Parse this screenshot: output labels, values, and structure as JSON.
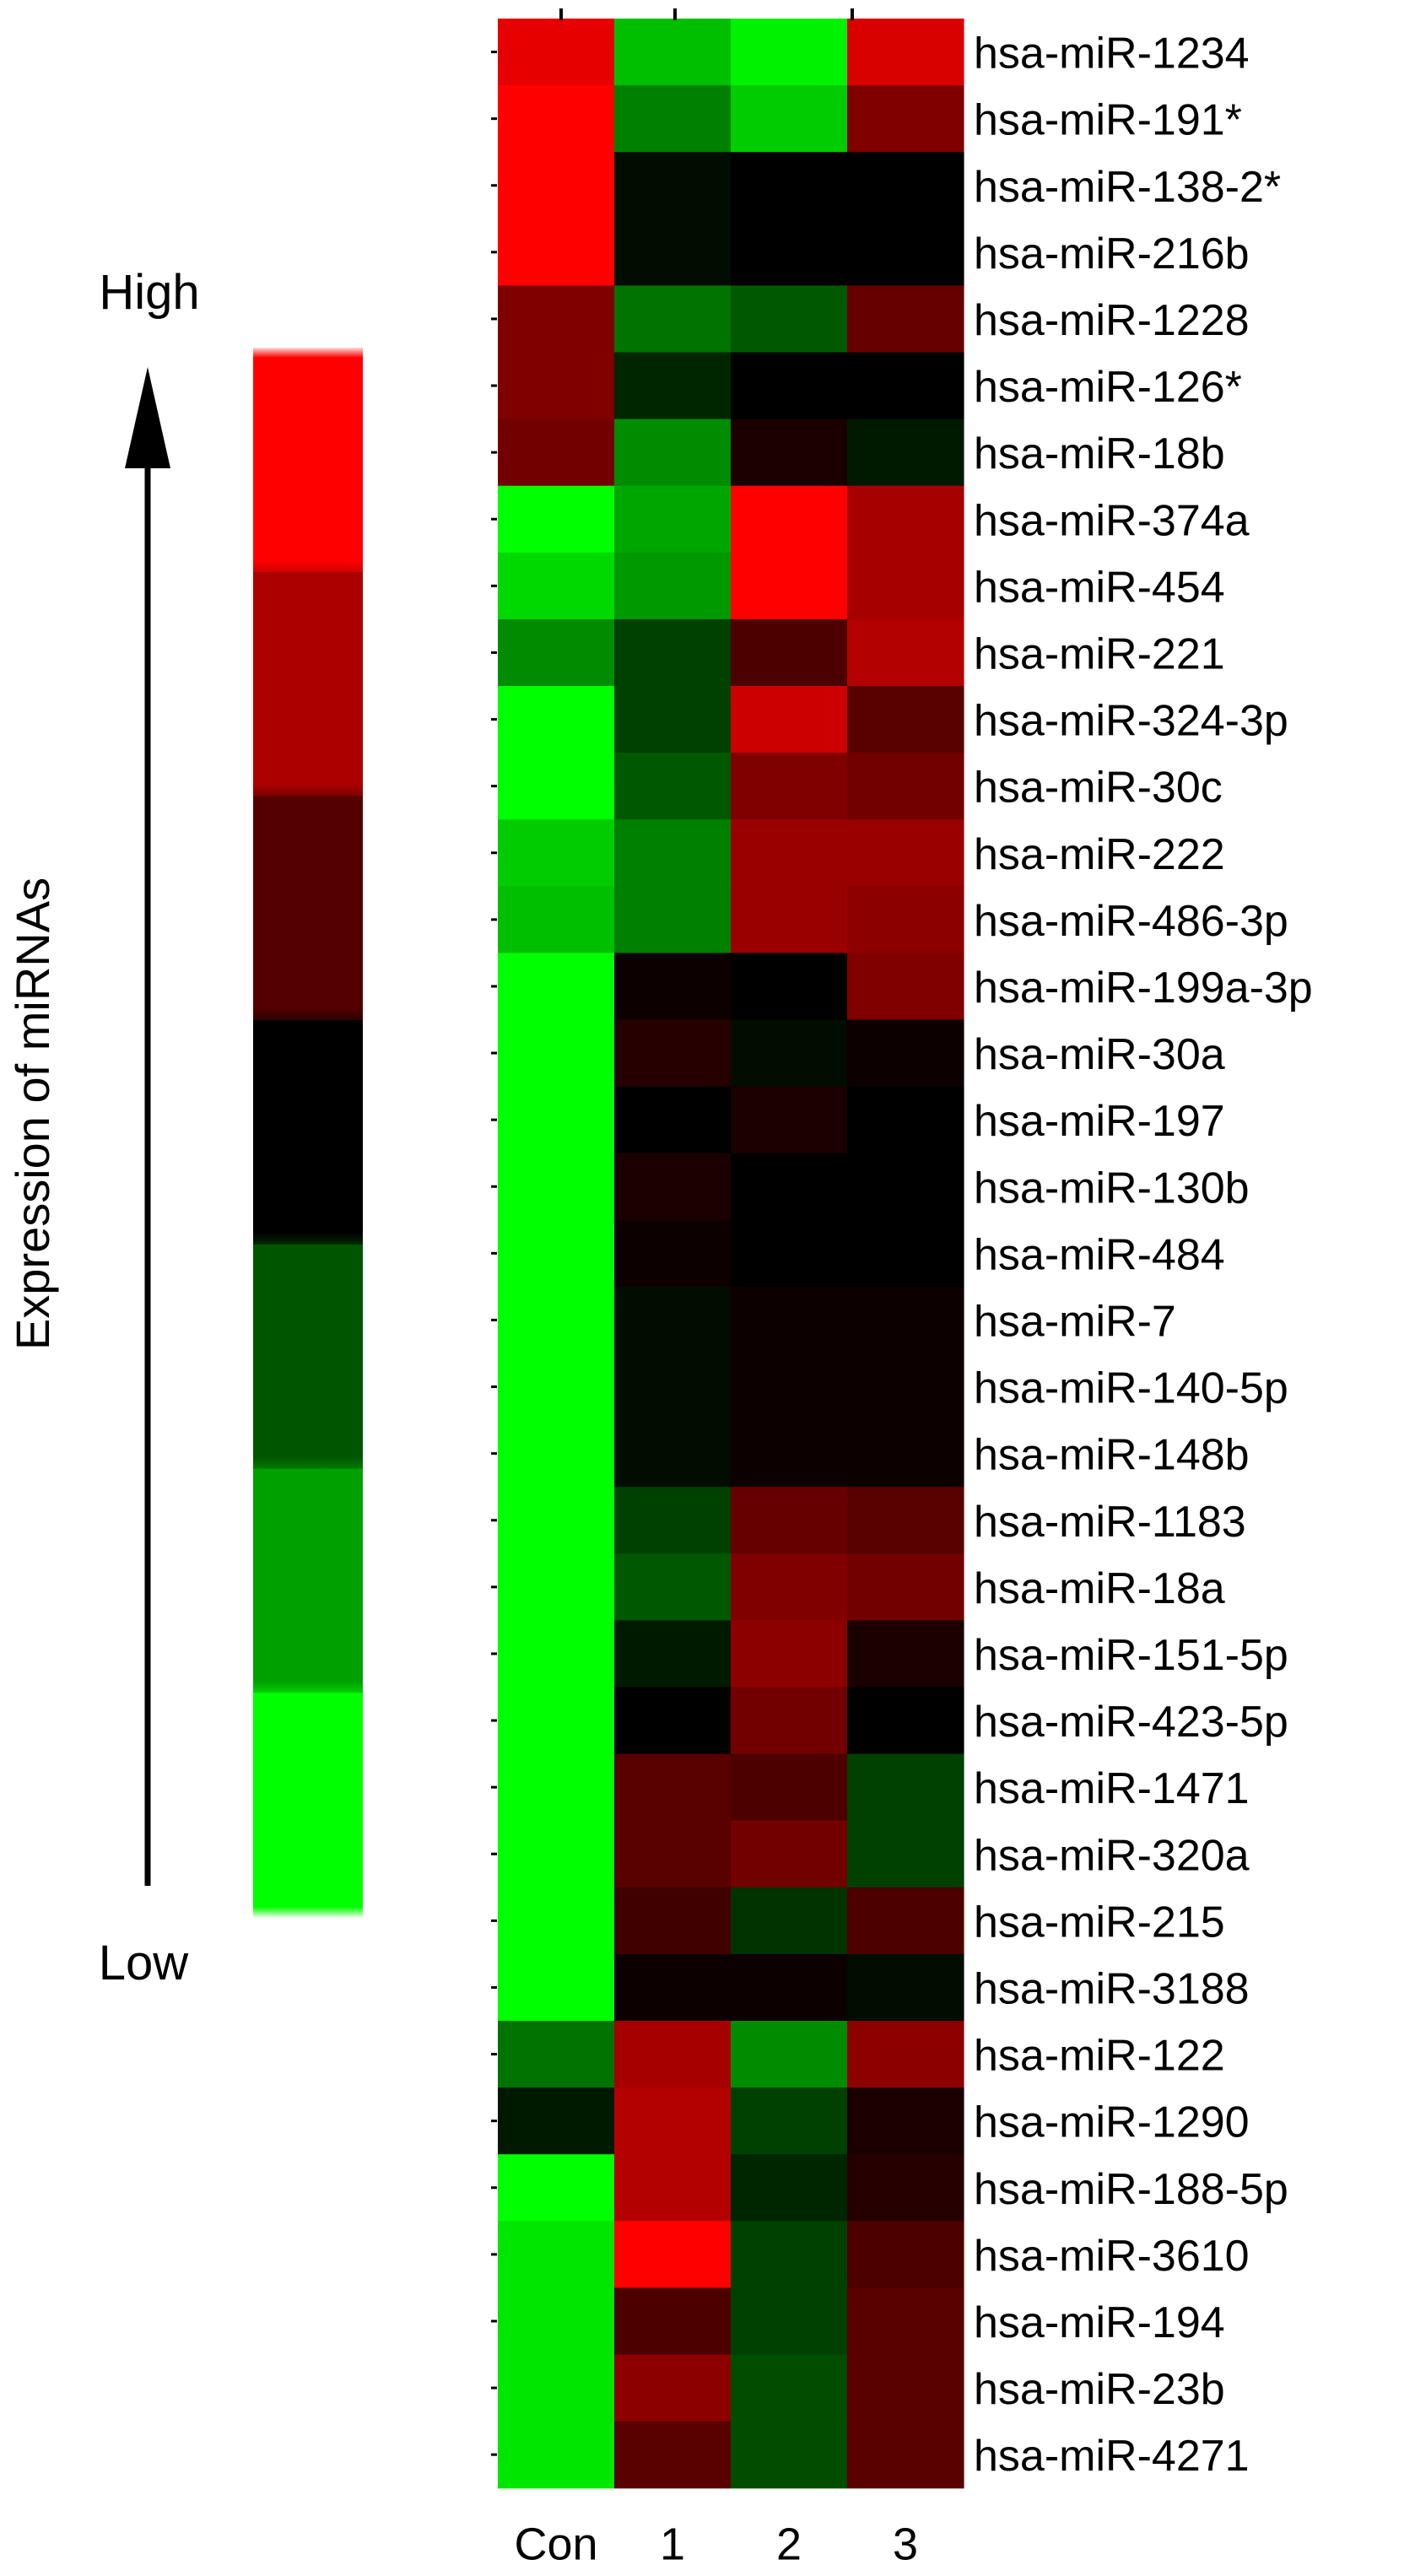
{
  "chart_data": {
    "type": "heatmap",
    "title": "",
    "columns": [
      "Con",
      "1",
      "2",
      "3"
    ],
    "rows": [
      "hsa-miR-1234",
      "hsa-miR-191*",
      "hsa-miR-138-2*",
      "hsa-miR-216b",
      "hsa-miR-1228",
      "hsa-miR-126*",
      "hsa-miR-18b",
      "hsa-miR-374a",
      "hsa-miR-454",
      "hsa-miR-221",
      "hsa-miR-324-3p",
      "hsa-miR-30c",
      "hsa-miR-222",
      "hsa-miR-486-3p",
      "hsa-miR-199a-3p",
      "hsa-miR-30a",
      "hsa-miR-197",
      "hsa-miR-130b",
      "hsa-miR-484",
      "hsa-miR-7",
      "hsa-miR-140-5p",
      "hsa-miR-148b",
      "hsa-miR-1183",
      "hsa-miR-18a",
      "hsa-miR-151-5p",
      "hsa-miR-423-5p",
      "hsa-miR-1471",
      "hsa-miR-320a",
      "hsa-miR-215",
      "hsa-miR-3188",
      "hsa-miR-122",
      "hsa-miR-1290",
      "hsa-miR-188-5p",
      "hsa-miR-3610",
      "hsa-miR-194",
      "hsa-miR-23b",
      "hsa-miR-4271"
    ],
    "values": [
      [
        0.9,
        -0.75,
        -0.95,
        0.85
      ],
      [
        1.0,
        -0.5,
        -0.8,
        0.5
      ],
      [
        1.0,
        -0.05,
        0.0,
        0.0
      ],
      [
        1.0,
        -0.05,
        0.0,
        0.0
      ],
      [
        0.5,
        -0.45,
        -0.35,
        0.4
      ],
      [
        0.5,
        -0.15,
        0.0,
        0.0
      ],
      [
        0.45,
        -0.55,
        0.1,
        -0.1
      ],
      [
        -1.0,
        -0.65,
        1.0,
        0.65
      ],
      [
        -0.85,
        -0.6,
        1.0,
        0.65
      ],
      [
        -0.55,
        -0.25,
        0.3,
        0.7
      ],
      [
        -1.0,
        -0.25,
        0.8,
        0.35
      ],
      [
        -1.0,
        -0.35,
        0.5,
        0.45
      ],
      [
        -0.8,
        -0.5,
        0.6,
        0.6
      ],
      [
        -0.75,
        -0.5,
        0.6,
        0.55
      ],
      [
        -1.0,
        0.05,
        0.0,
        0.5
      ],
      [
        -1.0,
        0.15,
        -0.05,
        0.05
      ],
      [
        -1.0,
        0.0,
        0.1,
        0.0
      ],
      [
        -1.0,
        0.1,
        0.0,
        0.0
      ],
      [
        -1.0,
        0.05,
        0.0,
        0.0
      ],
      [
        -1.0,
        -0.05,
        0.05,
        0.05
      ],
      [
        -1.0,
        -0.05,
        0.05,
        0.05
      ],
      [
        -1.0,
        -0.05,
        0.05,
        0.05
      ],
      [
        -1.0,
        -0.25,
        0.4,
        0.35
      ],
      [
        -1.0,
        -0.35,
        0.5,
        0.45
      ],
      [
        -1.0,
        -0.1,
        0.55,
        0.1
      ],
      [
        -1.0,
        0.0,
        0.45,
        0.0
      ],
      [
        -1.0,
        0.35,
        0.3,
        -0.25
      ],
      [
        -1.0,
        0.35,
        0.45,
        -0.25
      ],
      [
        -1.0,
        0.25,
        -0.2,
        0.3
      ],
      [
        -1.0,
        0.05,
        0.05,
        -0.05
      ],
      [
        -0.45,
        0.65,
        -0.55,
        0.55
      ],
      [
        -0.1,
        0.7,
        -0.25,
        0.1
      ],
      [
        -1.0,
        0.7,
        -0.15,
        0.15
      ],
      [
        -0.9,
        1.0,
        -0.25,
        0.3
      ],
      [
        -0.9,
        0.3,
        -0.25,
        0.35
      ],
      [
        -0.9,
        0.55,
        -0.3,
        0.35
      ],
      [
        -0.9,
        0.35,
        -0.3,
        0.35
      ]
    ],
    "colorbar": {
      "title": "Expression of miRNAs",
      "high_label": "High",
      "low_label": "Low",
      "colors": [
        "#ff0000",
        "#aa0000",
        "#550000",
        "#000000",
        "#005500",
        "#00a000",
        "#00ff00"
      ]
    },
    "colors": {
      "high": "#ff0000",
      "mid": "#000000",
      "low": "#00ff00"
    }
  }
}
